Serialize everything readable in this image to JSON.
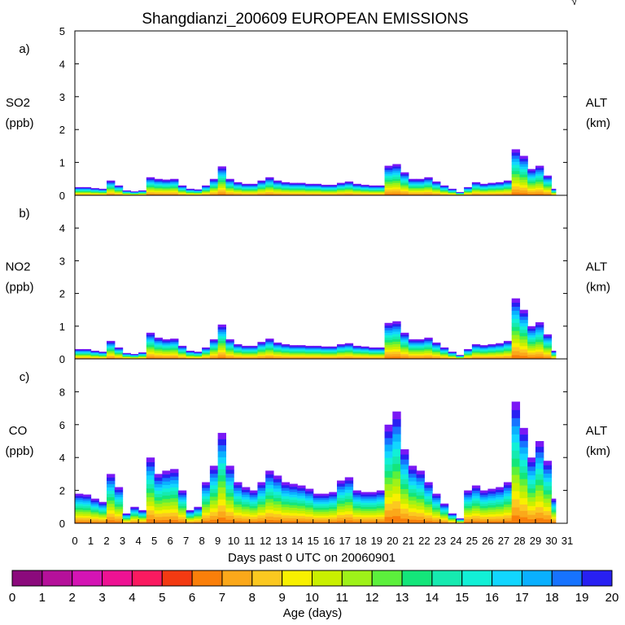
{
  "title": "Shangdianzi_200609 EUROPEAN EMISSIONS",
  "corner_mark": "√",
  "xlabel": "Days past 0 UTC on 20060901",
  "xticks": [
    "0",
    "1",
    "2",
    "3",
    "4",
    "5",
    "6",
    "7",
    "8",
    "9",
    "10",
    "11",
    "12",
    "13",
    "14",
    "15",
    "16",
    "17",
    "18",
    "19",
    "20",
    "21",
    "22",
    "23",
    "24",
    "25",
    "26",
    "27",
    "28",
    "29",
    "30",
    "31"
  ],
  "colorbar": {
    "label": "Age (days)",
    "ticks": [
      "0",
      "1",
      "2",
      "3",
      "4",
      "5",
      "6",
      "7",
      "8",
      "9",
      "10",
      "11",
      "12",
      "13",
      "14",
      "15",
      "16",
      "17",
      "18",
      "19",
      "20"
    ],
    "colors": [
      "#8b0a7c",
      "#b5109a",
      "#d414b4",
      "#ee1293",
      "#fa1a60",
      "#f33a12",
      "#fa7f0a",
      "#fba81a",
      "#fbc820",
      "#f8f000",
      "#c9f000",
      "#9ef219",
      "#5cf03c",
      "#14e67a",
      "#16eab0",
      "#12f0d6",
      "#12d6ff",
      "#0ab0ff",
      "#1773ff",
      "#2820f2",
      "#7a18f5"
    ]
  },
  "chart_data": [
    {
      "type": "area",
      "panel": "a)",
      "ylabel": "SO2",
      "yunit": "(ppb)",
      "right_label": "ALT",
      "right_unit": "(km)",
      "ylim": [
        0,
        5
      ],
      "yticks": [
        "0",
        "1",
        "2",
        "3",
        "4",
        "5"
      ],
      "x": [
        0,
        0.5,
        1,
        1.5,
        2,
        2.5,
        3,
        3.5,
        4,
        4.5,
        5,
        5.5,
        6,
        6.5,
        7,
        7.5,
        8,
        8.5,
        9,
        9.5,
        10,
        10.5,
        11,
        11.5,
        12,
        12.5,
        13,
        13.5,
        14,
        14.5,
        15,
        15.5,
        16,
        16.5,
        17,
        17.5,
        18,
        18.5,
        19,
        19.5,
        20,
        20.5,
        21,
        21.5,
        22,
        22.5,
        23,
        23.5,
        24,
        24.5,
        25,
        25.5,
        26,
        26.5,
        27,
        27.5,
        28,
        28.5,
        29,
        29.5,
        30
      ],
      "total": [
        0.25,
        0.25,
        0.22,
        0.2,
        0.45,
        0.3,
        0.15,
        0.12,
        0.15,
        0.55,
        0.5,
        0.48,
        0.5,
        0.3,
        0.2,
        0.18,
        0.3,
        0.5,
        0.88,
        0.5,
        0.4,
        0.35,
        0.35,
        0.45,
        0.55,
        0.45,
        0.4,
        0.38,
        0.38,
        0.35,
        0.35,
        0.32,
        0.32,
        0.38,
        0.42,
        0.35,
        0.32,
        0.3,
        0.3,
        0.9,
        0.95,
        0.7,
        0.5,
        0.5,
        0.55,
        0.42,
        0.3,
        0.2,
        0.1,
        0.25,
        0.4,
        0.35,
        0.38,
        0.4,
        0.45,
        1.4,
        1.2,
        0.8,
        0.9,
        0.6,
        0.2
      ]
    },
    {
      "type": "area",
      "panel": "b)",
      "ylabel": "NO2",
      "yunit": "(ppb)",
      "right_label": "ALT",
      "right_unit": "(km)",
      "ylim": [
        0,
        5
      ],
      "yticks": [
        "0",
        "1",
        "2",
        "3",
        "4"
      ],
      "x": [
        0,
        0.5,
        1,
        1.5,
        2,
        2.5,
        3,
        3.5,
        4,
        4.5,
        5,
        5.5,
        6,
        6.5,
        7,
        7.5,
        8,
        8.5,
        9,
        9.5,
        10,
        10.5,
        11,
        11.5,
        12,
        12.5,
        13,
        13.5,
        14,
        14.5,
        15,
        15.5,
        16,
        16.5,
        17,
        17.5,
        18,
        18.5,
        19,
        19.5,
        20,
        20.5,
        21,
        21.5,
        22,
        22.5,
        23,
        23.5,
        24,
        24.5,
        25,
        25.5,
        26,
        26.5,
        27,
        27.5,
        28,
        28.5,
        29,
        29.5,
        30
      ],
      "total": [
        0.3,
        0.3,
        0.25,
        0.22,
        0.55,
        0.35,
        0.18,
        0.15,
        0.2,
        0.8,
        0.65,
        0.6,
        0.62,
        0.4,
        0.25,
        0.22,
        0.35,
        0.6,
        1.05,
        0.6,
        0.45,
        0.4,
        0.4,
        0.52,
        0.62,
        0.5,
        0.45,
        0.42,
        0.42,
        0.4,
        0.4,
        0.38,
        0.38,
        0.45,
        0.48,
        0.4,
        0.38,
        0.35,
        0.35,
        1.1,
        1.15,
        0.8,
        0.6,
        0.6,
        0.65,
        0.5,
        0.35,
        0.22,
        0.12,
        0.3,
        0.45,
        0.42,
        0.45,
        0.48,
        0.55,
        1.85,
        1.5,
        1.0,
        1.12,
        0.75,
        0.25
      ]
    },
    {
      "type": "area",
      "panel": "c)",
      "ylabel": "CO",
      "yunit": "(ppb)",
      "right_label": "ALT",
      "right_unit": "(km)",
      "ylim": [
        0,
        10
      ],
      "yticks": [
        "0",
        "2",
        "4",
        "6",
        "8"
      ],
      "x": [
        0,
        0.5,
        1,
        1.5,
        2,
        2.5,
        3,
        3.5,
        4,
        4.5,
        5,
        5.5,
        6,
        6.5,
        7,
        7.5,
        8,
        8.5,
        9,
        9.5,
        10,
        10.5,
        11,
        11.5,
        12,
        12.5,
        13,
        13.5,
        14,
        14.5,
        15,
        15.5,
        16,
        16.5,
        17,
        17.5,
        18,
        18.5,
        19,
        19.5,
        20,
        20.5,
        21,
        21.5,
        22,
        22.5,
        23,
        23.5,
        24,
        24.5,
        25,
        25.5,
        26,
        26.5,
        27,
        27.5,
        28,
        28.5,
        29,
        29.5,
        30
      ],
      "total": [
        1.8,
        1.75,
        1.5,
        1.3,
        3.0,
        2.2,
        0.6,
        1.0,
        0.8,
        4.0,
        3.0,
        3.2,
        3.3,
        2.0,
        0.8,
        1.0,
        2.5,
        3.5,
        5.5,
        3.5,
        2.5,
        2.2,
        2.0,
        2.5,
        3.2,
        2.9,
        2.5,
        2.4,
        2.3,
        2.1,
        1.8,
        1.8,
        1.9,
        2.6,
        2.8,
        2.0,
        1.9,
        1.9,
        2.0,
        6.0,
        6.8,
        4.5,
        3.5,
        3.2,
        2.5,
        1.8,
        1.2,
        0.6,
        0.3,
        2.0,
        2.3,
        2.0,
        2.1,
        2.2,
        2.5,
        7.4,
        5.8,
        4.0,
        5.0,
        3.8,
        1.5
      ]
    }
  ]
}
